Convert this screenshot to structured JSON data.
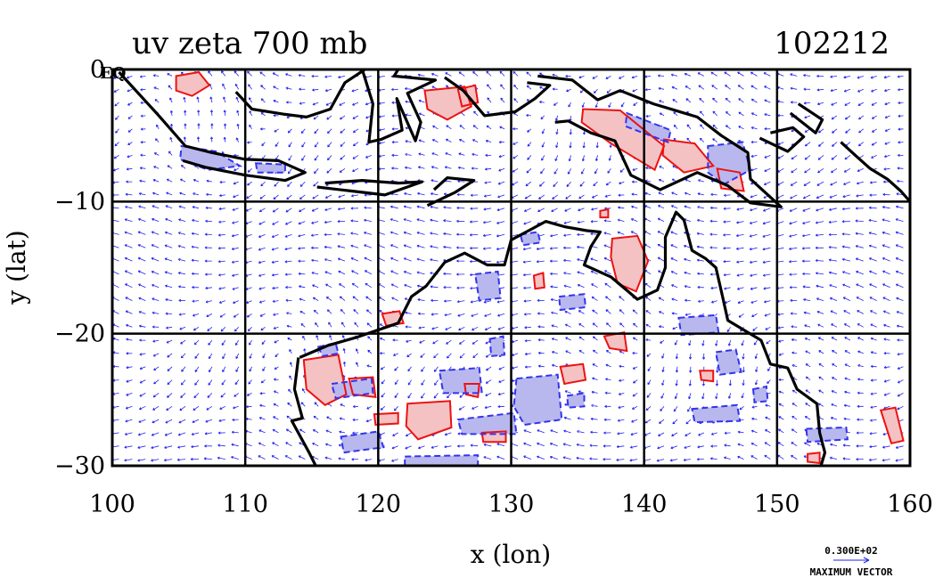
{
  "chart_data": {
    "type": "vector-contour-map",
    "title": "uv zeta 700 mb",
    "date_label": "102212",
    "xlabel": "x (lon)",
    "ylabel": "y (lat)",
    "xlim": [
      100,
      160
    ],
    "ylim": [
      -30,
      0
    ],
    "xticks": [
      100,
      110,
      120,
      130,
      140,
      150,
      160
    ],
    "yticks": [
      0,
      -10,
      -20,
      -30
    ],
    "ytick_labels": [
      "0",
      "−10",
      "−20",
      "−30"
    ],
    "corner_label": "EQ",
    "grid": true,
    "grid_lines_x": [
      110,
      120,
      130,
      140,
      150
    ],
    "grid_lines_y": [
      -10,
      -20
    ],
    "vector_color": "#2222ee",
    "positive_vorticity_color": "#ee1111",
    "positive_fill_color": "#f4c2c2",
    "negative_vorticity_color": "#3333ee",
    "negative_fill_color": "#b8b8ee",
    "coastline_color": "#000000",
    "vector_legend": {
      "value": "0.300E+02",
      "label": "MAXIMUM VECTOR"
    },
    "red_contours_lonlat": [
      [
        [
          104.8,
          -0.5
        ],
        [
          106.5,
          -0.2
        ],
        [
          107.3,
          -1.2
        ],
        [
          106,
          -2
        ],
        [
          104.8,
          -1.6
        ]
      ],
      [
        [
          123.5,
          -1.6
        ],
        [
          126.5,
          -1.3
        ],
        [
          127,
          -2.8
        ],
        [
          125.2,
          -3.8
        ],
        [
          123.7,
          -3
        ]
      ],
      [
        [
          126,
          -1.5
        ],
        [
          127.3,
          -1.2
        ],
        [
          127.5,
          -2.5
        ],
        [
          126.3,
          -2.8
        ]
      ],
      [
        [
          135.4,
          -3
        ],
        [
          138.2,
          -3.1
        ],
        [
          141.5,
          -5.8
        ],
        [
          140.8,
          -7.6
        ],
        [
          137.5,
          -5.6
        ],
        [
          135.3,
          -4
        ]
      ],
      [
        [
          141.5,
          -5.3
        ],
        [
          143.8,
          -5.6
        ],
        [
          145.2,
          -7.3
        ],
        [
          143,
          -7.8
        ],
        [
          141.4,
          -6.5
        ]
      ],
      [
        [
          145.5,
          -7.5
        ],
        [
          147.2,
          -7.8
        ],
        [
          147.5,
          -9.2
        ],
        [
          145.8,
          -9
        ]
      ],
      [
        [
          137.6,
          -12.8
        ],
        [
          139.5,
          -12.6
        ],
        [
          140.3,
          -14.5
        ],
        [
          139.4,
          -16.8
        ],
        [
          138,
          -16.2
        ],
        [
          137.5,
          -14.2
        ]
      ],
      [
        [
          120.3,
          -18.5
        ],
        [
          121.6,
          -18.3
        ],
        [
          121.9,
          -19.2
        ],
        [
          120.6,
          -19.4
        ]
      ],
      [
        [
          137,
          -20.2
        ],
        [
          138.5,
          -19.9
        ],
        [
          138.7,
          -21.3
        ],
        [
          137.4,
          -21.1
        ]
      ],
      [
        [
          114.4,
          -22
        ],
        [
          117,
          -21.6
        ],
        [
          117.6,
          -24.6
        ],
        [
          116,
          -25.4
        ],
        [
          114.6,
          -24.2
        ]
      ],
      [
        [
          117.8,
          -23.4
        ],
        [
          119.6,
          -23.3
        ],
        [
          119.8,
          -24.8
        ],
        [
          118.1,
          -24.6
        ]
      ],
      [
        [
          119.7,
          -26.1
        ],
        [
          121.5,
          -26
        ],
        [
          121.5,
          -26.8
        ],
        [
          119.8,
          -26.9
        ]
      ],
      [
        [
          122.2,
          -25.3
        ],
        [
          125.4,
          -25.1
        ],
        [
          125.5,
          -27.1
        ],
        [
          123,
          -28
        ],
        [
          122.1,
          -27
        ]
      ],
      [
        [
          126.5,
          -23.8
        ],
        [
          127.6,
          -23.8
        ],
        [
          127.5,
          -24.8
        ],
        [
          126.6,
          -24.6
        ]
      ],
      [
        [
          127.8,
          -27.5
        ],
        [
          129.6,
          -27.4
        ],
        [
          129.6,
          -28.2
        ],
        [
          127.9,
          -28.2
        ]
      ],
      [
        [
          133.7,
          -22.5
        ],
        [
          135.4,
          -22.3
        ],
        [
          135.6,
          -23.5
        ],
        [
          134,
          -23.8
        ]
      ],
      [
        [
          144.2,
          -22.8
        ],
        [
          145.2,
          -22.8
        ],
        [
          145.2,
          -23.6
        ],
        [
          144.3,
          -23.5
        ]
      ],
      [
        [
          157.8,
          -25.8
        ],
        [
          158.9,
          -25.6
        ],
        [
          159.5,
          -28.1
        ],
        [
          158.6,
          -28.3
        ]
      ],
      [
        [
          152.3,
          -29.1
        ],
        [
          153.2,
          -29
        ],
        [
          153.2,
          -29.8
        ],
        [
          152.3,
          -29.7
        ]
      ],
      [
        [
          136.7,
          -10.7
        ],
        [
          137.3,
          -10.6
        ],
        [
          137.3,
          -11.2
        ],
        [
          136.7,
          -11.2
        ]
      ],
      [
        [
          131.7,
          -15.6
        ],
        [
          132.4,
          -15.4
        ],
        [
          132.5,
          -16.5
        ],
        [
          131.8,
          -16.6
        ]
      ]
    ],
    "blue_contours_lonlat": [
      [
        [
          105.2,
          -5.8
        ],
        [
          107.8,
          -6.2
        ],
        [
          109.6,
          -7.3
        ],
        [
          107.2,
          -7.6
        ],
        [
          105.1,
          -6.8
        ]
      ],
      [
        [
          110.8,
          -7.1
        ],
        [
          113,
          -7.2
        ],
        [
          113,
          -7.8
        ],
        [
          110.9,
          -7.8
        ]
      ],
      [
        [
          138.7,
          -3.3
        ],
        [
          142,
          -4.6
        ],
        [
          141.8,
          -5.5
        ],
        [
          138.6,
          -4.3
        ]
      ],
      [
        [
          144.8,
          -5.8
        ],
        [
          147.4,
          -5.5
        ],
        [
          148,
          -7.6
        ],
        [
          146,
          -8.7
        ],
        [
          144.8,
          -7.8
        ]
      ],
      [
        [
          130.7,
          -12.5
        ],
        [
          132,
          -12.3
        ],
        [
          132.2,
          -13.1
        ],
        [
          130.9,
          -13.3
        ]
      ],
      [
        [
          127.3,
          -15.5
        ],
        [
          129,
          -15.3
        ],
        [
          129.2,
          -17.3
        ],
        [
          127.6,
          -17.5
        ]
      ],
      [
        [
          133.6,
          -17.2
        ],
        [
          135.5,
          -17
        ],
        [
          135.6,
          -18
        ],
        [
          133.7,
          -18.2
        ]
      ],
      [
        [
          116.5,
          -23.8
        ],
        [
          119.5,
          -23.4
        ],
        [
          119.6,
          -24.5
        ],
        [
          116.8,
          -24.9
        ]
      ],
      [
        [
          117.2,
          -27.8
        ],
        [
          120,
          -27.4
        ],
        [
          120.4,
          -28.6
        ],
        [
          117.4,
          -29
        ]
      ],
      [
        [
          122,
          -29.3
        ],
        [
          127.5,
          -29.2
        ],
        [
          127.5,
          -30
        ],
        [
          122,
          -30
        ]
      ],
      [
        [
          124.6,
          -22.8
        ],
        [
          127.6,
          -22.6
        ],
        [
          127.8,
          -24.5
        ],
        [
          124.9,
          -24.5
        ]
      ],
      [
        [
          126,
          -26.5
        ],
        [
          130.2,
          -26
        ],
        [
          130.4,
          -27.6
        ],
        [
          126.3,
          -27.6
        ]
      ],
      [
        [
          130.4,
          -23.4
        ],
        [
          133.5,
          -23.1
        ],
        [
          133.8,
          -26.5
        ],
        [
          131,
          -26.9
        ],
        [
          130.2,
          -25.5
        ]
      ],
      [
        [
          134.2,
          -24.7
        ],
        [
          135.5,
          -24.5
        ],
        [
          135.5,
          -25.5
        ],
        [
          134.3,
          -25.6
        ]
      ],
      [
        [
          142.6,
          -18.8
        ],
        [
          145.4,
          -18.6
        ],
        [
          145.6,
          -19.9
        ],
        [
          142.8,
          -20.1
        ]
      ],
      [
        [
          145.4,
          -21.4
        ],
        [
          146.9,
          -21.2
        ],
        [
          147.3,
          -22.9
        ],
        [
          145.7,
          -23.1
        ]
      ],
      [
        [
          143.6,
          -25.7
        ],
        [
          147,
          -25.4
        ],
        [
          147.2,
          -26.6
        ],
        [
          143.8,
          -26.7
        ]
      ],
      [
        [
          148.2,
          -24.2
        ],
        [
          149.2,
          -24
        ],
        [
          149.3,
          -25.1
        ],
        [
          148.3,
          -25.2
        ]
      ],
      [
        [
          152.2,
          -27.2
        ],
        [
          155.2,
          -27.1
        ],
        [
          155.3,
          -28
        ],
        [
          152.3,
          -28.2
        ]
      ],
      [
        [
          128.4,
          -20.4
        ],
        [
          129.4,
          -20.2
        ],
        [
          129.5,
          -21.6
        ],
        [
          128.5,
          -21.7
        ]
      ],
      [
        [
          115.5,
          -21
        ],
        [
          116.8,
          -20.7
        ],
        [
          117,
          -21.5
        ],
        [
          115.8,
          -21.7
        ]
      ]
    ],
    "coastlines_lonlat": [
      [
        [
          100.5,
          -0.2
        ],
        [
          103.5,
          -3.5
        ],
        [
          105.5,
          -5.8
        ],
        [
          107.5,
          -6.3
        ],
        [
          110,
          -6.8
        ],
        [
          112.5,
          -6.9
        ],
        [
          114.5,
          -7.8
        ],
        [
          113,
          -8.4
        ],
        [
          110,
          -8
        ],
        [
          107,
          -7.4
        ],
        [
          105.3,
          -6.9
        ]
      ],
      [
        [
          109.3,
          -1.7
        ],
        [
          110.5,
          -3
        ],
        [
          113,
          -3.4
        ],
        [
          114.6,
          -3.6
        ],
        [
          116.4,
          -3
        ],
        [
          117.5,
          -1
        ],
        [
          119,
          0
        ]
      ],
      [
        [
          118.8,
          0
        ],
        [
          119.6,
          -2.6
        ],
        [
          119.3,
          -5.5
        ],
        [
          120.2,
          -5.3
        ],
        [
          121.8,
          -4.6
        ],
        [
          121.4,
          -2.2
        ],
        [
          122.8,
          -5.4
        ],
        [
          123.2,
          -4
        ],
        [
          122.2,
          -1.8
        ],
        [
          124.3,
          -0.8
        ],
        [
          121.2,
          -0.5
        ],
        [
          121.5,
          0
        ]
      ],
      [
        [
          125,
          -0.6
        ],
        [
          126.4,
          -1.6
        ],
        [
          128,
          -3.5
        ],
        [
          130.3,
          -3.2
        ],
        [
          131.8,
          -2.2
        ],
        [
          132.9,
          -1.2
        ],
        [
          131.2,
          -1
        ]
      ],
      [
        [
          132,
          -0.5
        ],
        [
          134.6,
          -0.8
        ],
        [
          136.5,
          -2.3
        ],
        [
          138.2,
          -1.6
        ],
        [
          140.7,
          -2.6
        ],
        [
          144,
          -3.6
        ],
        [
          145.8,
          -5
        ],
        [
          147.8,
          -6.3
        ],
        [
          148,
          -8.3
        ],
        [
          150.3,
          -10.4
        ],
        [
          148,
          -10.1
        ],
        [
          146.3,
          -8.8
        ],
        [
          144,
          -7.8
        ],
        [
          141.2,
          -9.1
        ],
        [
          139,
          -8
        ],
        [
          137.8,
          -5.4
        ],
        [
          136,
          -4.8
        ],
        [
          134.3,
          -3.9
        ],
        [
          133.3,
          -4
        ]
      ],
      [
        [
          116,
          -8.6
        ],
        [
          118.8,
          -8.4
        ],
        [
          121.5,
          -8.6
        ],
        [
          123.3,
          -8.5
        ],
        [
          120.5,
          -9.5
        ],
        [
          118,
          -9.2
        ],
        [
          115.4,
          -8.9
        ]
      ],
      [
        [
          124.2,
          -9.1
        ],
        [
          125.2,
          -8.2
        ],
        [
          127.2,
          -8.4
        ],
        [
          125.8,
          -9.3
        ],
        [
          123.7,
          -10.3
        ]
      ],
      [
        [
          148.7,
          -5.2
        ],
        [
          150.8,
          -6.2
        ],
        [
          152,
          -5.1
        ],
        [
          151.2,
          -4.4
        ],
        [
          149.5,
          -4.8
        ]
      ],
      [
        [
          151,
          -3.3
        ],
        [
          152.9,
          -4.8
        ],
        [
          153.4,
          -3.8
        ],
        [
          151.6,
          -2.6
        ]
      ],
      [
        [
          154.8,
          -5.5
        ],
        [
          156,
          -6.6
        ],
        [
          157,
          -7.5
        ],
        [
          158.3,
          -8.3
        ],
        [
          159.3,
          -9.2
        ],
        [
          160,
          -10
        ]
      ],
      [
        [
          114,
          -21.8
        ],
        [
          113.7,
          -24.2
        ],
        [
          114.3,
          -26.4
        ],
        [
          113.5,
          -26.6
        ],
        [
          114.8,
          -29
        ],
        [
          115.3,
          -30
        ]
      ],
      [
        [
          114.1,
          -21.8
        ],
        [
          116.2,
          -20.9
        ],
        [
          118.3,
          -20.3
        ],
        [
          121.5,
          -19.2
        ],
        [
          122.5,
          -17.2
        ],
        [
          123.6,
          -16.4
        ],
        [
          125,
          -14.6
        ],
        [
          126.5,
          -13.9
        ],
        [
          128.2,
          -14.8
        ],
        [
          129.5,
          -14.8
        ],
        [
          130,
          -12.9
        ],
        [
          131.5,
          -12.1
        ],
        [
          132.6,
          -11.5
        ],
        [
          134,
          -11.9
        ],
        [
          135.7,
          -12.2
        ],
        [
          136.7,
          -12.3
        ],
        [
          136,
          -13.4
        ],
        [
          135.5,
          -14.8
        ],
        [
          137.5,
          -15.7
        ],
        [
          139.5,
          -17.4
        ],
        [
          141,
          -16.7
        ],
        [
          141.6,
          -15
        ],
        [
          141.6,
          -12.7
        ],
        [
          142.4,
          -10.8
        ],
        [
          143,
          -11.4
        ],
        [
          143.6,
          -13.7
        ],
        [
          144.6,
          -14.3
        ],
        [
          145.4,
          -15
        ],
        [
          145.9,
          -17.2
        ],
        [
          146.3,
          -19
        ],
        [
          148.8,
          -20.5
        ],
        [
          149.5,
          -22.3
        ],
        [
          150.8,
          -22.6
        ],
        [
          151.5,
          -24.2
        ],
        [
          153,
          -25.3
        ],
        [
          153.2,
          -27.5
        ],
        [
          153.6,
          -29
        ],
        [
          153.3,
          -30
        ]
      ]
    ]
  }
}
